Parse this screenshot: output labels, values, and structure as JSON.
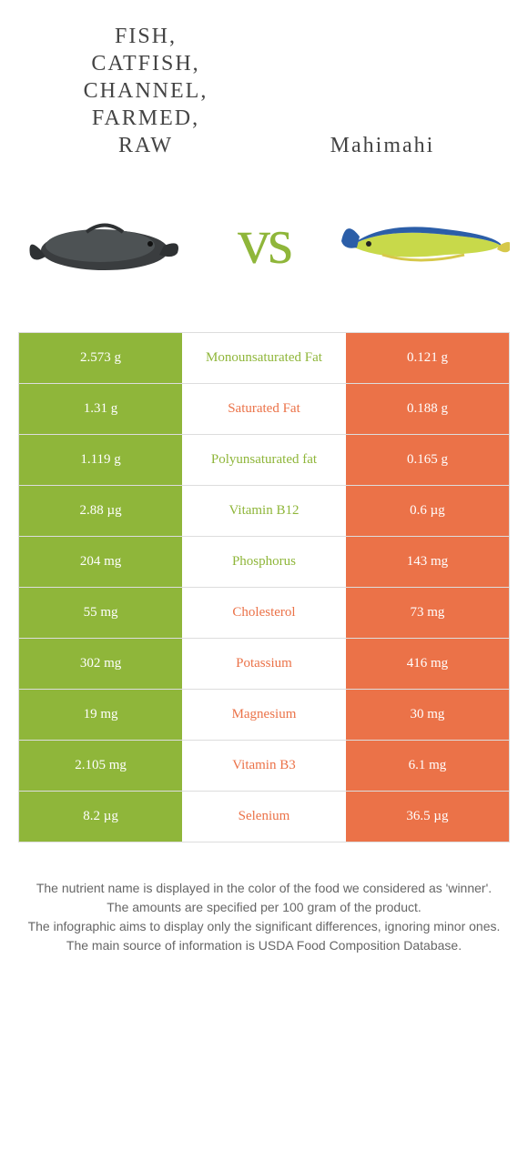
{
  "food_left": {
    "title_lines": [
      "Fish,",
      "catfish,",
      "channel,",
      "farmed,",
      "raw"
    ],
    "color": "#8fb63a",
    "image": "catfish"
  },
  "food_right": {
    "title": "Mahimahi",
    "color": "#eb7248",
    "image": "mahimahi"
  },
  "vs_label": "vs",
  "vs_color": "#8fb63a",
  "rows": [
    {
      "left": "2.573 g",
      "label": "Monounsaturated Fat",
      "right": "0.121 g",
      "winner": "left"
    },
    {
      "left": "1.31 g",
      "label": "Saturated Fat",
      "right": "0.188 g",
      "winner": "right"
    },
    {
      "left": "1.119 g",
      "label": "Polyunsaturated fat",
      "right": "0.165 g",
      "winner": "left"
    },
    {
      "left": "2.88 µg",
      "label": "Vitamin B12",
      "right": "0.6 µg",
      "winner": "left"
    },
    {
      "left": "204 mg",
      "label": "Phosphorus",
      "right": "143 mg",
      "winner": "left"
    },
    {
      "left": "55 mg",
      "label": "Cholesterol",
      "right": "73 mg",
      "winner": "right"
    },
    {
      "left": "302 mg",
      "label": "Potassium",
      "right": "416 mg",
      "winner": "right"
    },
    {
      "left": "19 mg",
      "label": "Magnesium",
      "right": "30 mg",
      "winner": "right"
    },
    {
      "left": "2.105 mg",
      "label": "Vitamin B3",
      "right": "6.1 mg",
      "winner": "right"
    },
    {
      "left": "8.2 µg",
      "label": "Selenium",
      "right": "36.5 µg",
      "winner": "right"
    }
  ],
  "colors": {
    "left_col": "#8fb63a",
    "right_col": "#eb7248",
    "row_border": "#dddddd",
    "table_bg": "#ffffff"
  },
  "footer_lines": [
    "The nutrient name is displayed in the color of the food we considered as 'winner'.",
    "The amounts are specified per 100 gram of the product.",
    "The infographic aims to display only the significant differences, ignoring minor ones.",
    "The main source of information is USDA Food Composition Database."
  ]
}
